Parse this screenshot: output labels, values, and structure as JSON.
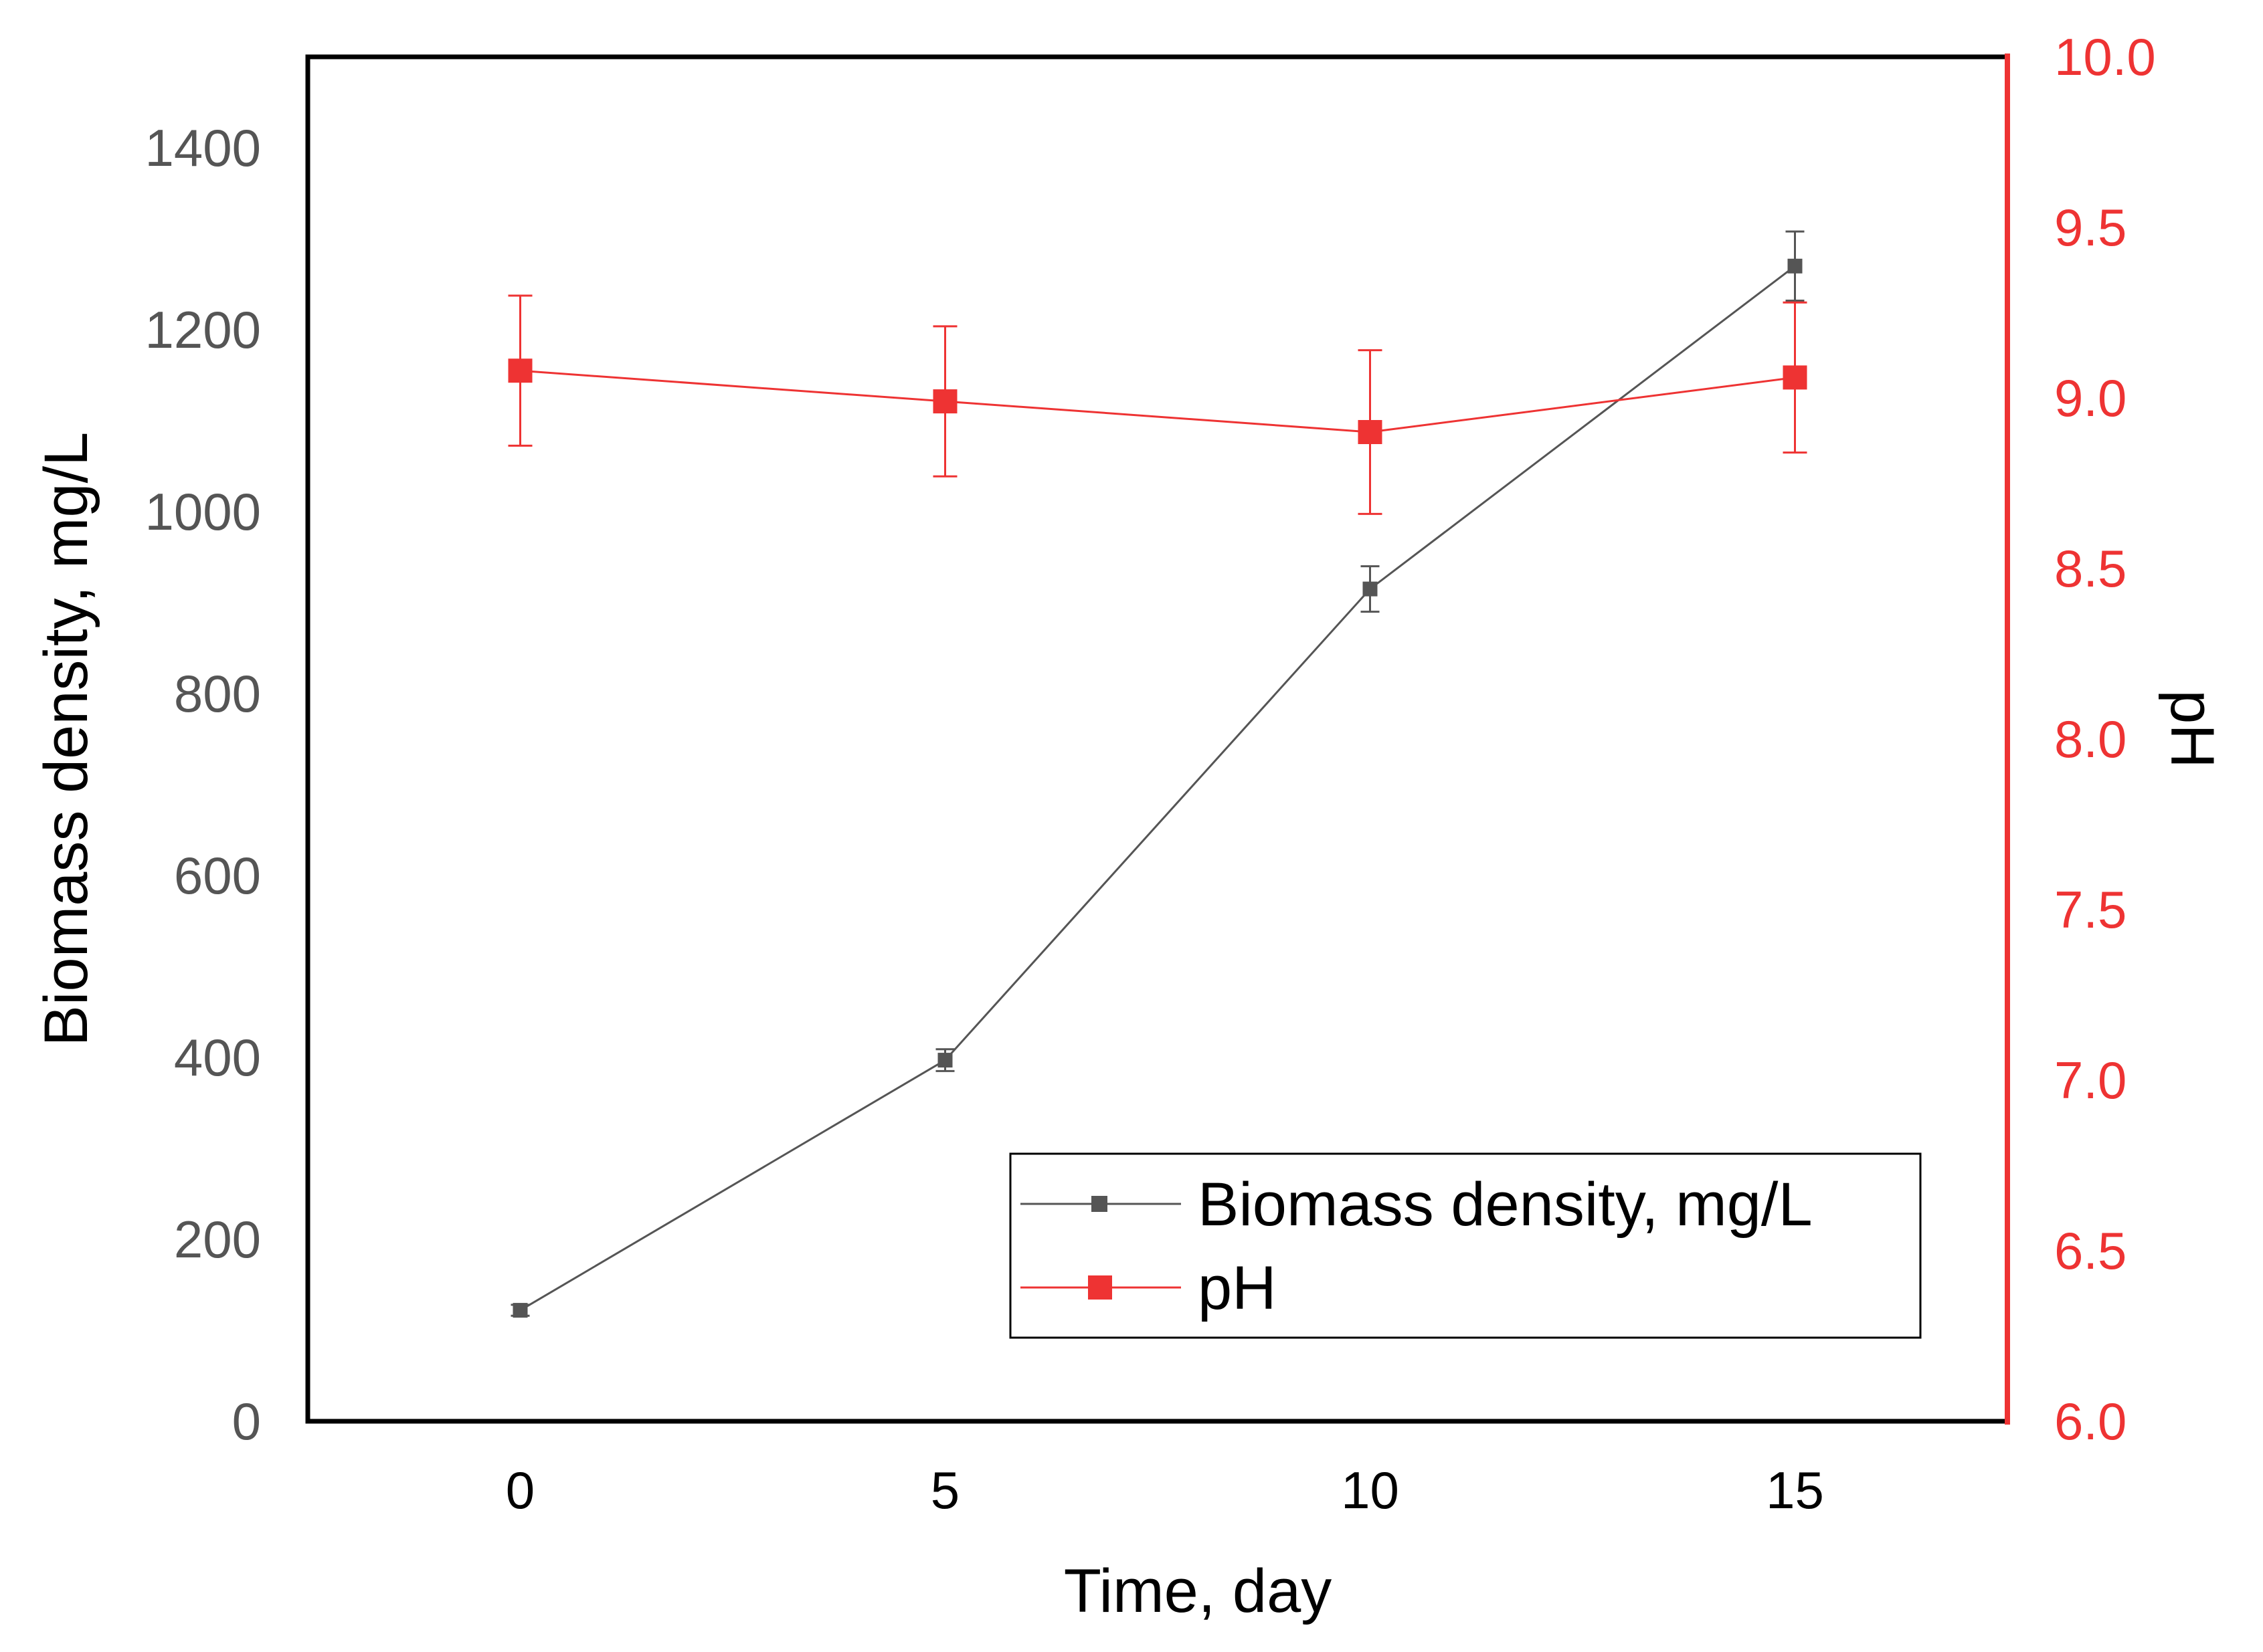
{
  "chart_data": {
    "type": "line",
    "title": "",
    "xlabel": "Time, day",
    "ylabel": "Biomass density, mg/L",
    "y2label": "pH",
    "x_ticks": [
      "0",
      "5",
      "10",
      "15"
    ],
    "xlim": [
      -2.5,
      17.5
    ],
    "ylim": [
      0,
      1500
    ],
    "y_ticks": [
      "0",
      "200",
      "400",
      "600",
      "800",
      "1000",
      "1200",
      "1400"
    ],
    "y2lim": [
      6.0,
      10.0
    ],
    "y2_ticks": [
      "6.0",
      "6.5",
      "7.0",
      "7.5",
      "8.0",
      "8.5",
      "9.0",
      "9.5",
      "10.0"
    ],
    "grid": false,
    "legend_position": "bottom-right",
    "series": [
      {
        "name": "Biomass density, mg/L",
        "axis": "left",
        "color": "#555555",
        "marker": "square-small",
        "x": [
          0,
          5,
          10,
          15
        ],
        "values": [
          122,
          397,
          915,
          1270
        ],
        "errors": [
          6,
          12,
          25,
          38
        ]
      },
      {
        "name": "pH",
        "axis": "right",
        "color": "#ee3333",
        "marker": "square-large",
        "x": [
          0,
          5,
          10,
          15
        ],
        "values": [
          9.08,
          8.99,
          8.9,
          9.06
        ],
        "errors": [
          0.22,
          0.22,
          0.24,
          0.22
        ]
      }
    ]
  }
}
